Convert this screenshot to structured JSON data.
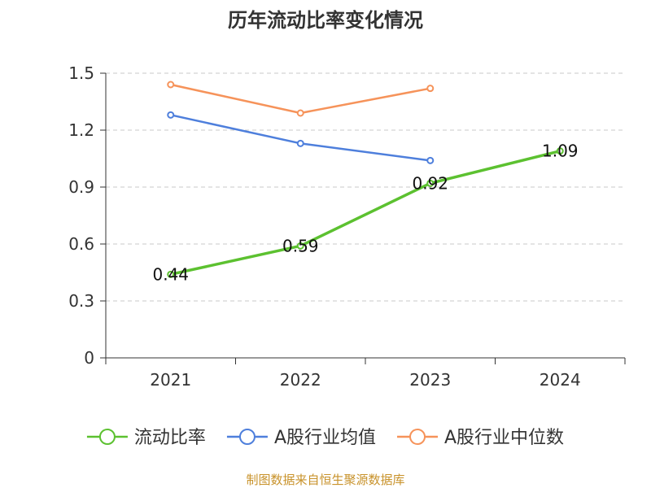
{
  "chart_data": {
    "type": "line",
    "title": "历年流动比率变化情况",
    "categories": [
      "2021",
      "2022",
      "2023",
      "2024"
    ],
    "ylim": [
      0,
      1.5
    ],
    "yticks": [
      "0",
      "0.3",
      "0.6",
      "0.9",
      "1.2",
      "1.5"
    ],
    "grid": true,
    "legend_position": "bottom",
    "series": [
      {
        "name": "流动比率",
        "color": "#5cc130",
        "values": [
          0.44,
          0.59,
          0.92,
          1.09
        ],
        "labels": [
          "0.44",
          "0.59",
          "0.92",
          "1.09"
        ]
      },
      {
        "name": "A股行业均值",
        "color": "#4e7fdc",
        "values": [
          1.28,
          1.13,
          1.04,
          null
        ]
      },
      {
        "name": "A股行业中位数",
        "color": "#f6935a",
        "values": [
          1.44,
          1.29,
          1.42,
          null
        ]
      }
    ],
    "source": "制图数据来自恒生聚源数据库"
  }
}
